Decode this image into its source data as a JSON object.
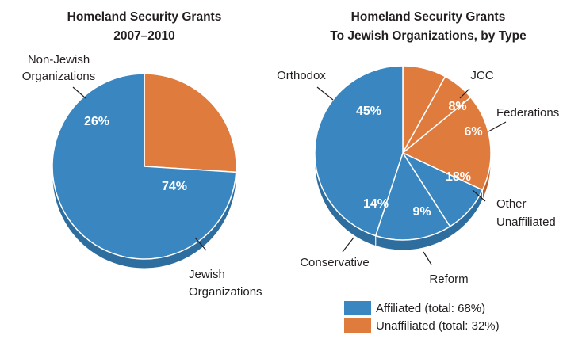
{
  "colors": {
    "affiliated": "#3a86c0",
    "affiliated_side": "#2e6e9f",
    "unaffiliated": "#e07b3e",
    "unaffiliated_side": "#bd5f28",
    "edge": "#ffffff"
  },
  "chart_data": [
    {
      "type": "pie",
      "title": [
        "Homeland Security Grants",
        "2007–2010"
      ],
      "slices": [
        {
          "label": "Non-Jewish Organizations",
          "label_lines": [
            "Non-Jewish",
            "Organizations"
          ],
          "value": 26,
          "value_label": "26%",
          "group": "unaffiliated"
        },
        {
          "label": "Jewish Organizations",
          "label_lines": [
            "Jewish",
            "Organizations"
          ],
          "value": 74,
          "value_label": "74%",
          "group": "affiliated"
        }
      ]
    },
    {
      "type": "pie",
      "title": [
        "Homeland Security Grants",
        "To Jewish Organizations, by Type"
      ],
      "slices": [
        {
          "label": "JCC",
          "label_lines": [
            "JCC"
          ],
          "value": 8,
          "value_label": "8%",
          "group": "unaffiliated"
        },
        {
          "label": "Federations",
          "label_lines": [
            "Federations"
          ],
          "value": 6,
          "value_label": "6%",
          "group": "unaffiliated"
        },
        {
          "label": "Other Unaffiliated",
          "label_lines": [
            "Other",
            "Unaffiliated"
          ],
          "value": 18,
          "value_label": "18%",
          "group": "unaffiliated"
        },
        {
          "label": "Reform",
          "label_lines": [
            "Reform"
          ],
          "value": 9,
          "value_label": "9%",
          "group": "affiliated"
        },
        {
          "label": "Conservative",
          "label_lines": [
            "Conservative"
          ],
          "value": 14,
          "value_label": "14%",
          "group": "affiliated"
        },
        {
          "label": "Orthodox",
          "label_lines": [
            "Orthodox"
          ],
          "value": 45,
          "value_label": "45%",
          "group": "affiliated"
        }
      ]
    }
  ],
  "legend": {
    "placement": "bottom-right",
    "items": [
      {
        "group": "affiliated",
        "label": "Affiliated (total: 68%)"
      },
      {
        "group": "unaffiliated",
        "label": "Unaffiliated (total: 32%)"
      }
    ]
  }
}
